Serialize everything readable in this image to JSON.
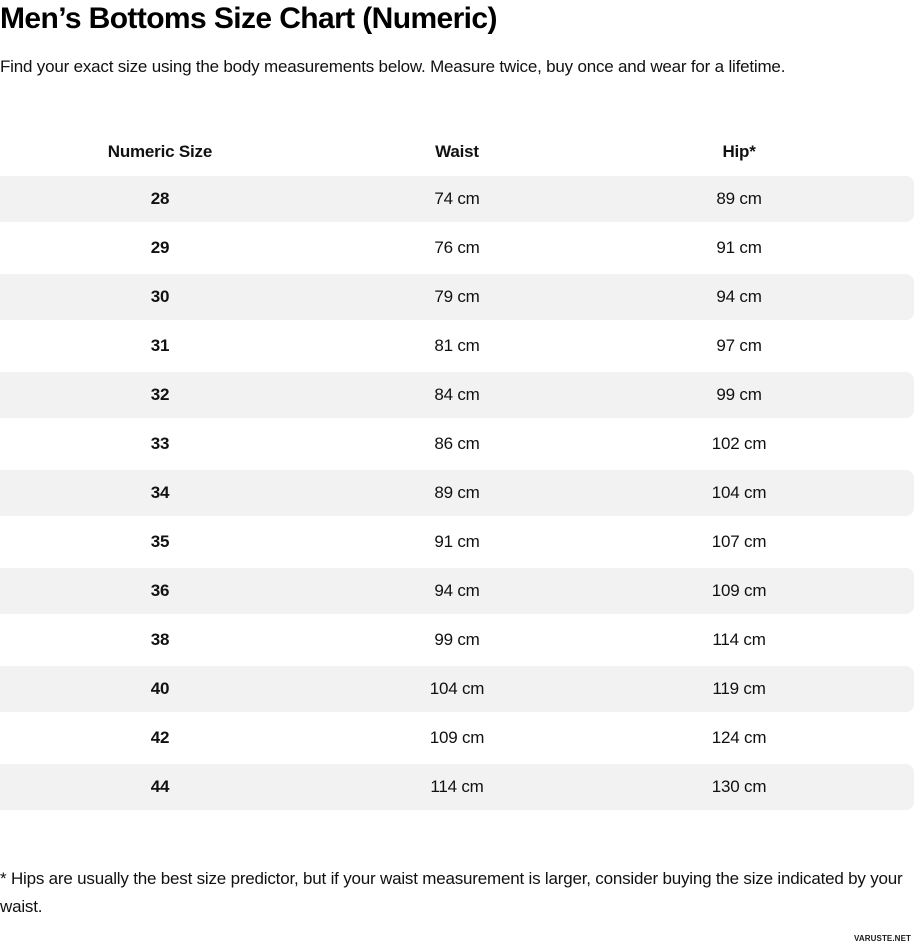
{
  "page": {
    "title": "Men’s Bottoms Size Chart (Numeric)",
    "subtitle": "Find your exact size using the body measurements below. Measure twice, buy once and wear for a lifetime.",
    "footnote": "* Hips are usually the best size predictor, but if your waist measurement is larger, consider buying the size indicated by your waist.",
    "watermark": "VARUSTE.NET"
  },
  "colors": {
    "row_stripe": "#f2f2f2",
    "text": "#111111",
    "background": "#ffffff"
  },
  "table": {
    "headers": [
      "Numeric Size",
      "Waist",
      "Hip*"
    ],
    "rows": [
      {
        "size": "28",
        "waist": "74 cm",
        "hip": "89 cm"
      },
      {
        "size": "29",
        "waist": "76 cm",
        "hip": "91 cm"
      },
      {
        "size": "30",
        "waist": "79 cm",
        "hip": "94 cm"
      },
      {
        "size": "31",
        "waist": "81 cm",
        "hip": "97 cm"
      },
      {
        "size": "32",
        "waist": "84 cm",
        "hip": "99 cm"
      },
      {
        "size": "33",
        "waist": "86 cm",
        "hip": "102 cm"
      },
      {
        "size": "34",
        "waist": "89 cm",
        "hip": "104 cm"
      },
      {
        "size": "35",
        "waist": "91 cm",
        "hip": "107 cm"
      },
      {
        "size": "36",
        "waist": "94 cm",
        "hip": "109 cm"
      },
      {
        "size": "38",
        "waist": "99 cm",
        "hip": "114 cm"
      },
      {
        "size": "40",
        "waist": "104 cm",
        "hip": "119 cm"
      },
      {
        "size": "42",
        "waist": "109 cm",
        "hip": "124 cm"
      },
      {
        "size": "44",
        "waist": "114 cm",
        "hip": "130 cm"
      }
    ]
  }
}
